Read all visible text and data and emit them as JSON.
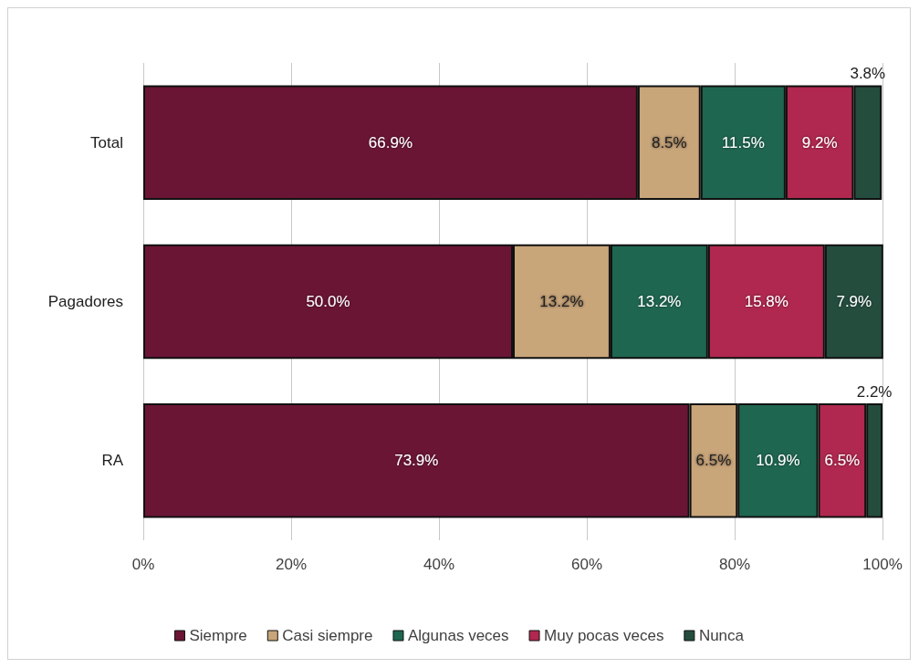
{
  "chart_data": {
    "type": "bar",
    "orientation": "horizontal",
    "stacked": true,
    "categories": [
      "Total",
      "Pagadores",
      "RA"
    ],
    "series": [
      {
        "name": "Siempre",
        "color": "#6b1535",
        "values": [
          66.9,
          50.0,
          73.9
        ],
        "value_labels": [
          "66.9%",
          "50.0%",
          "73.9%"
        ]
      },
      {
        "name": "Casi siempre",
        "color": "#c9a57a",
        "values": [
          8.5,
          13.2,
          6.5
        ],
        "value_labels": [
          "8.5%",
          "13.2%",
          "6.5%"
        ]
      },
      {
        "name": "Algunas veces",
        "color": "#1f6650",
        "values": [
          11.5,
          13.2,
          10.9
        ],
        "value_labels": [
          "11.5%",
          "13.2%",
          "10.9%"
        ]
      },
      {
        "name": "Muy pocas veces",
        "color": "#b0284f",
        "values": [
          9.2,
          15.8,
          6.5
        ],
        "value_labels": [
          "9.2%",
          "15.8%",
          "6.5%"
        ]
      },
      {
        "name": "Nunca",
        "color": "#244d3e",
        "values": [
          3.8,
          7.9,
          2.2
        ],
        "value_labels": [
          "3.8%",
          "7.9%",
          "2.2%"
        ]
      }
    ],
    "xlim": [
      0,
      100
    ],
    "xticks": [
      {
        "value": 0,
        "label": "0%"
      },
      {
        "value": 20,
        "label": "20%"
      },
      {
        "value": 40,
        "label": "40%"
      },
      {
        "value": 60,
        "label": "60%"
      },
      {
        "value": 80,
        "label": "80%"
      },
      {
        "value": 100,
        "label": "100%"
      }
    ],
    "grid": "x",
    "legend": "bottom"
  }
}
